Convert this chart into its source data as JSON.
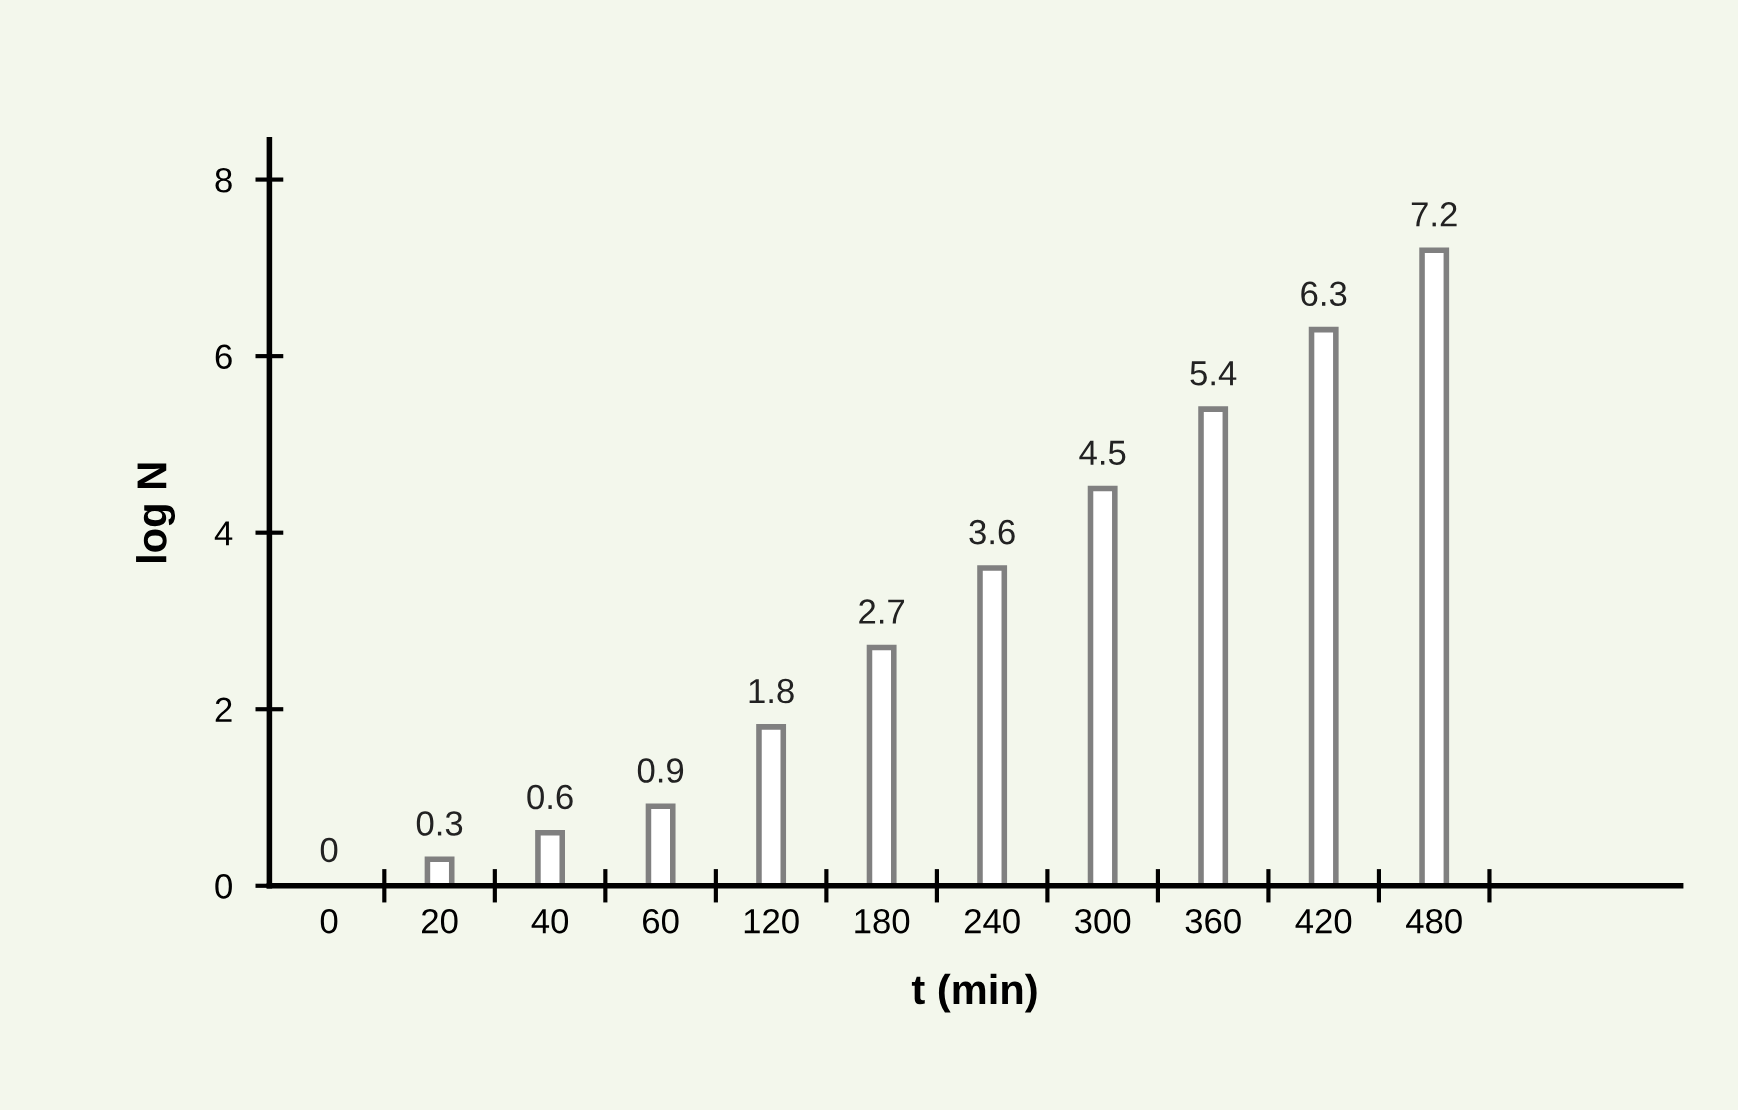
{
  "chart_data": {
    "type": "bar",
    "categories": [
      "0",
      "20",
      "40",
      "60",
      "120",
      "180",
      "240",
      "300",
      "360",
      "420",
      "480"
    ],
    "values": [
      0,
      0.3,
      0.6,
      0.9,
      1.8,
      2.7,
      3.6,
      4.5,
      5.4,
      6.3,
      7.2
    ],
    "color": "#808080",
    "xlabel": "t (min)",
    "ylabel": "log N",
    "ylim": [
      0,
      8.45
    ],
    "yticks": [
      0,
      2,
      4,
      6,
      8
    ],
    "data_labels": true,
    "grid": false,
    "legend": false
  }
}
